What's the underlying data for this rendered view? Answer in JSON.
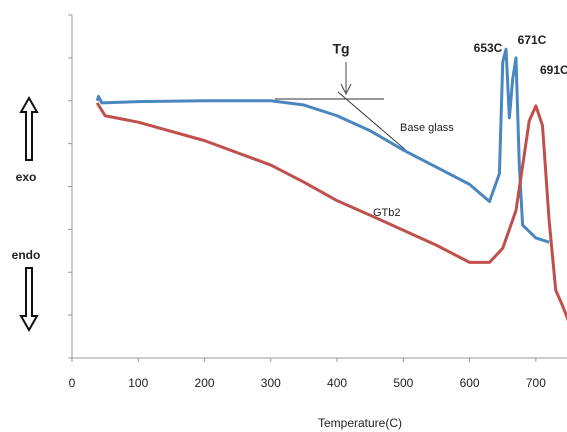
{
  "chart_data": {
    "type": "line",
    "x_label": "Temperature(C)",
    "annotations": {
      "tg": "Tg",
      "peak1": "653C",
      "peak2": "671C",
      "peak3": "691C",
      "exo": "exo",
      "endo": "endo"
    },
    "xlim": [
      0,
      750
    ],
    "xticks": [
      0,
      100,
      200,
      300,
      400,
      500,
      600,
      700
    ],
    "ylim": [
      0,
      8
    ],
    "yticks": [
      0,
      1,
      2,
      3,
      4,
      5,
      6,
      7,
      8
    ],
    "series": [
      {
        "name": "Base glass",
        "color": "#4a86c0",
        "x": [
          38,
          40,
          45,
          100,
          200,
          300,
          350,
          400,
          450,
          500,
          550,
          600,
          630,
          645,
          650,
          655,
          660,
          665,
          670,
          675,
          680,
          700,
          720
        ],
        "values": [
          6.0,
          6.1,
          5.95,
          5.98,
          6.0,
          6.0,
          5.9,
          5.65,
          5.3,
          4.85,
          4.45,
          4.05,
          3.65,
          4.3,
          6.9,
          7.2,
          5.6,
          6.5,
          7.0,
          4.5,
          3.1,
          2.8,
          2.7
        ]
      },
      {
        "name": "GTb2",
        "color": "#c0504d",
        "x": [
          38,
          40,
          50,
          100,
          200,
          300,
          350,
          400,
          450,
          500,
          550,
          600,
          630,
          650,
          670,
          690,
          700,
          710,
          720,
          730,
          740,
          750
        ],
        "values": [
          5.95,
          5.9,
          5.65,
          5.5,
          5.07,
          4.5,
          4.1,
          3.67,
          3.33,
          2.98,
          2.63,
          2.23,
          2.23,
          2.56,
          3.44,
          5.53,
          5.88,
          5.42,
          3.21,
          1.58,
          1.23,
          0.84
        ]
      }
    ]
  }
}
